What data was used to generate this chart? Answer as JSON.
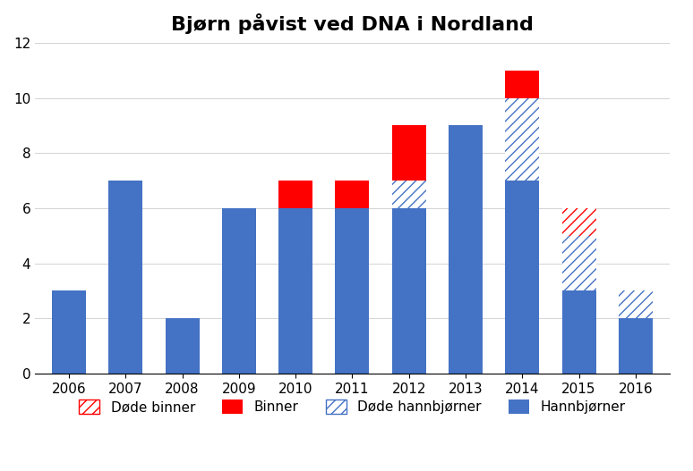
{
  "years": [
    "2006",
    "2007",
    "2008",
    "2009",
    "2010",
    "2011",
    "2012",
    "2013",
    "2014",
    "2015",
    "2016"
  ],
  "hannbjorner": [
    3,
    7,
    2,
    6,
    6,
    6,
    6,
    9,
    7,
    3,
    2
  ],
  "binner": [
    0,
    0,
    0,
    0,
    1,
    1,
    2,
    0,
    1,
    0,
    0
  ],
  "dode_hannbjorner": [
    0,
    0,
    0,
    0,
    0,
    0,
    1,
    0,
    3,
    2,
    1
  ],
  "dode_binner": [
    0,
    0,
    0,
    0,
    0,
    0,
    0,
    0,
    0,
    1,
    0
  ],
  "color_hannbjorner": "#4472C4",
  "color_binner": "#FF0000",
  "color_dode_hannbjorner_edge": "#4472C4",
  "color_dode_binner_edge": "#FF0000",
  "title": "Bjørn påvist ved DNA i Nordland",
  "ylim": [
    0,
    12
  ],
  "yticks": [
    0,
    2,
    4,
    6,
    8,
    10,
    12
  ],
  "legend_labels": [
    "Døde binner",
    "Binner",
    "Døde hannbjørner",
    "Hannbjørner"
  ],
  "bar_width": 0.6
}
